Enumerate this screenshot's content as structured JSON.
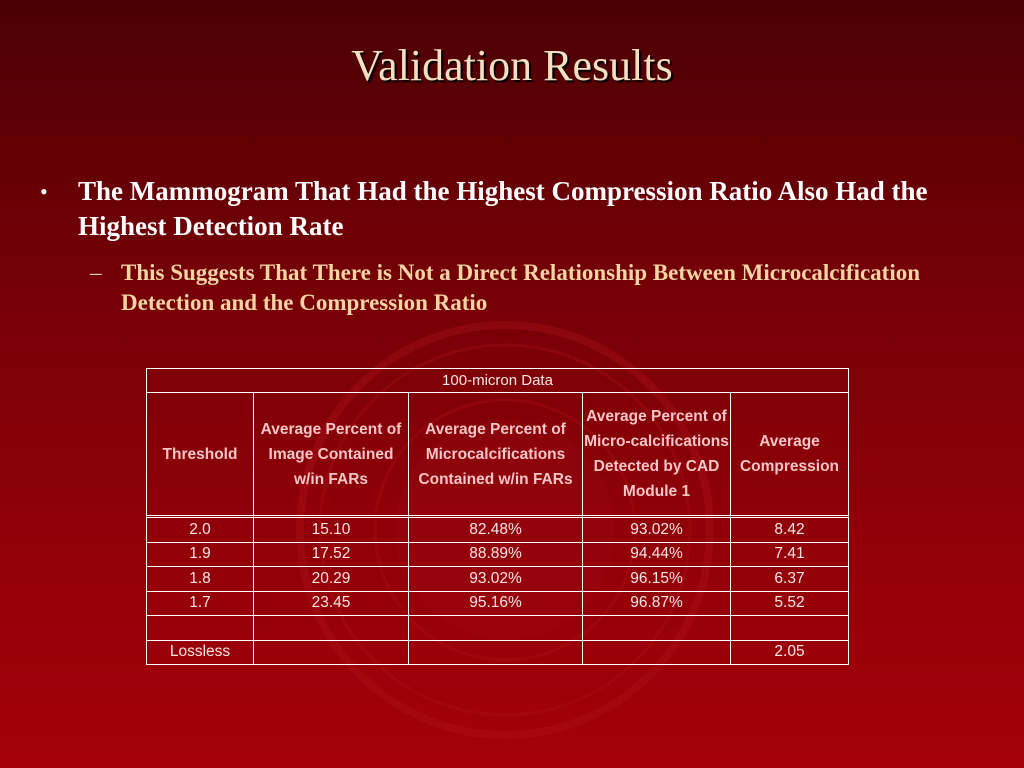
{
  "slide": {
    "title": "Validation Results",
    "bullet": "The Mammogram That Had the Highest Compression Ratio Also Had the Highest Detection Rate",
    "sub_bullet": "This Suggests That There is Not  a Direct Relationship Between Microcalcification Detection and the Compression Ratio",
    "bullet_marker": "•",
    "sub_marker": "–"
  },
  "table": {
    "caption": "100-micron Data",
    "headers": [
      "Threshold",
      "Average Percent of Image Contained w/in FARs",
      "Average Percent of Microcalcifications Contained w/in FARs",
      "Average Percent of Micro-calcifications Detected by CAD Module 1",
      "Average Compression"
    ],
    "rows": [
      [
        "2.0",
        "15.10",
        "82.48%",
        "93.02%",
        "8.42"
      ],
      [
        "1.9",
        "17.52",
        "88.89%",
        "94.44%",
        "7.41"
      ],
      [
        "1.8",
        "20.29",
        "93.02%",
        "96.15%",
        "6.37"
      ],
      [
        "1.7",
        "23.45",
        "95.16%",
        "96.87%",
        "5.52"
      ],
      [
        "",
        "",
        "",
        "",
        ""
      ],
      [
        "Lossless",
        "",
        "",
        "",
        "2.05"
      ]
    ]
  }
}
